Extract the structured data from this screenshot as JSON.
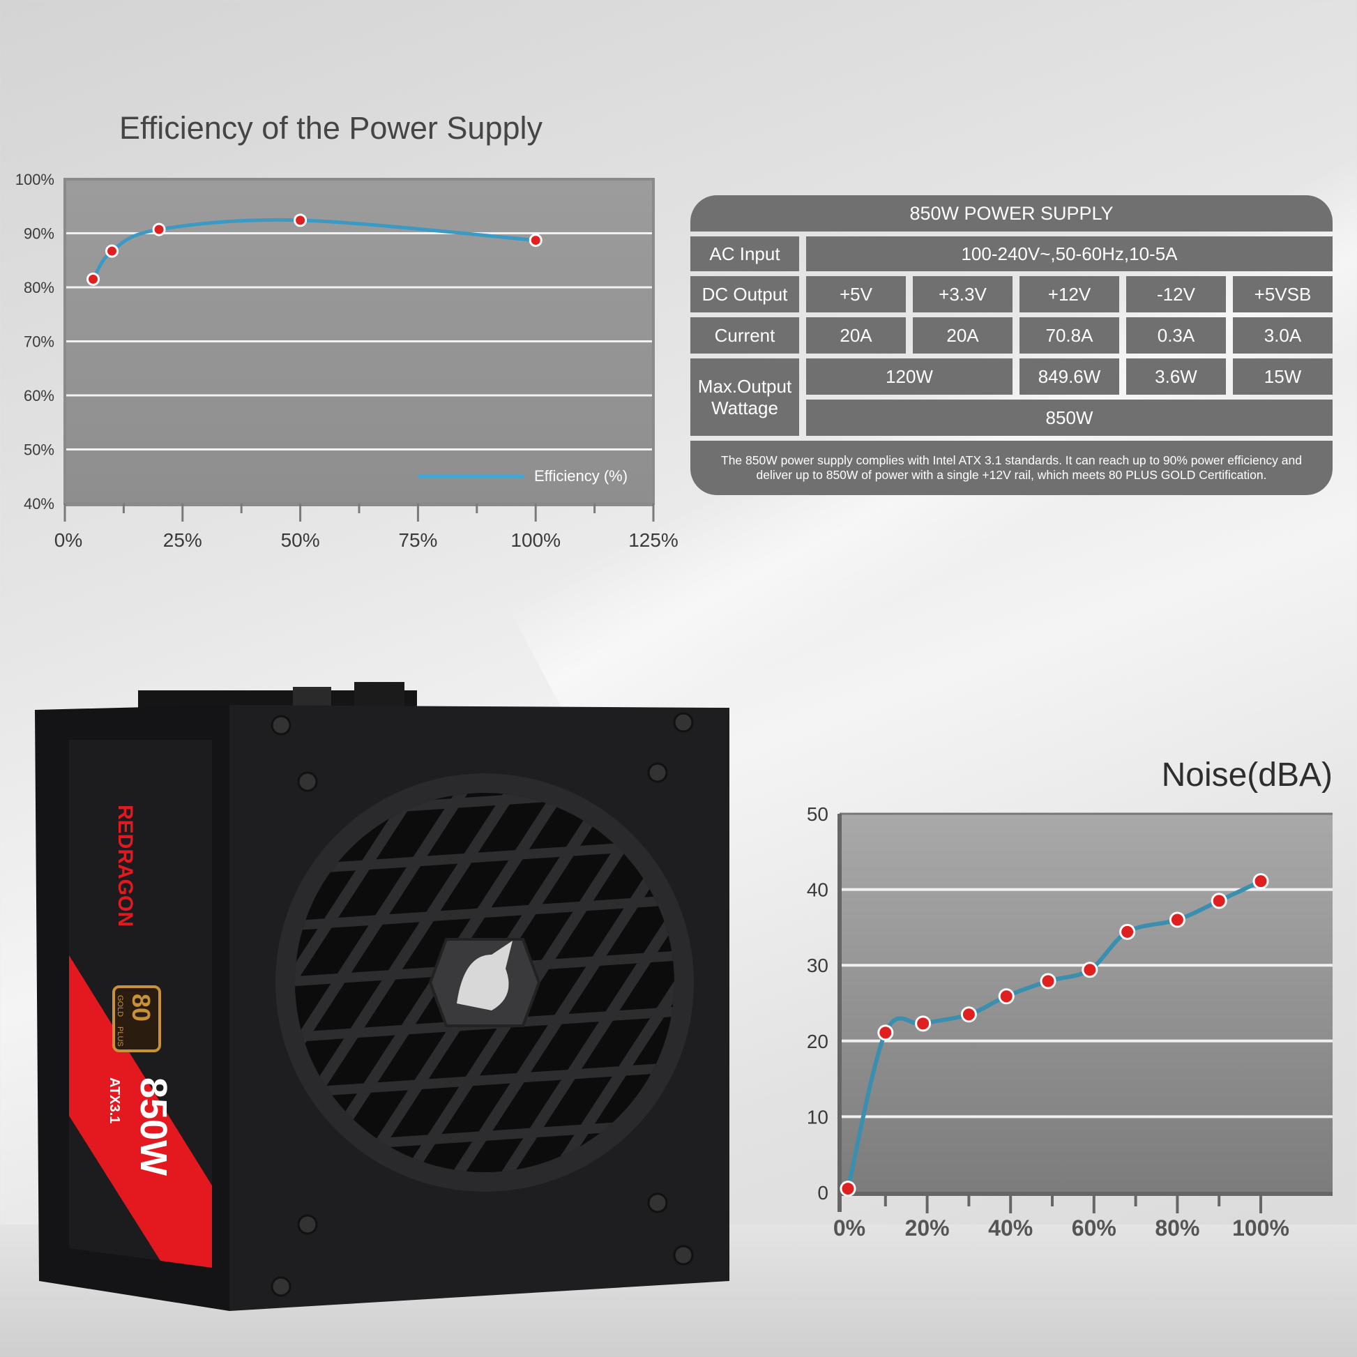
{
  "efficiency_chart": {
    "title": "Efficiency of the Power Supply",
    "chart_data": {
      "type": "line",
      "title": "Efficiency of the Power Supply",
      "xlabel": "",
      "ylabel": "",
      "xlim": [
        0,
        125
      ],
      "ylim": [
        40,
        100
      ],
      "x_ticks": [
        "0%",
        "25%",
        "50%",
        "75%",
        "100%",
        "125%"
      ],
      "y_ticks": [
        "40%",
        "50%",
        "60%",
        "70%",
        "80%",
        "90%",
        "100%"
      ],
      "grid": true,
      "legend": "bottom-right",
      "series": [
        {
          "name": "Efficiency (%)",
          "color": "#3a9ac4",
          "marker_color": "#e02020",
          "x": [
            6,
            10,
            20,
            50,
            100
          ],
          "y": [
            81.5,
            86.7,
            90.7,
            92.4,
            88.7
          ]
        }
      ]
    }
  },
  "spec_table": {
    "header": "850W POWER SUPPLY",
    "rows": {
      "ac_input": {
        "label": "AC Input",
        "value": "100-240V~,50-60Hz,10-5A"
      },
      "dc_output": {
        "label": "DC Output",
        "values": [
          "+5V",
          "+3.3V",
          "+12V",
          "-12V",
          "+5VSB"
        ]
      },
      "current": {
        "label": "Current",
        "values": [
          "20A",
          "20A",
          "70.8A",
          "0.3A",
          "3.0A"
        ]
      },
      "max_output": {
        "label": "Max.Output Wattage",
        "values": [
          "120W",
          "849.6W",
          "3.6W",
          "15W"
        ],
        "total": "850W"
      }
    },
    "note": "The 850W  power supply complies with Intel ATX 3.1  standards. It can reach up to 90% power efficiency and deliver up to 850W of power with a single +12V rail, which meets 80 PLUS GOLD Certification."
  },
  "noise_chart": {
    "title": "Noise(dBA)",
    "chart_data": {
      "type": "line",
      "title": "Noise(dBA)",
      "xlabel": "",
      "ylabel": "",
      "xlim": [
        0,
        100
      ],
      "ylim": [
        0,
        50
      ],
      "x_ticks": [
        "0%",
        "20%",
        "40%",
        "60%",
        "80%",
        "100%"
      ],
      "y_ticks": [
        "0",
        "10",
        "20",
        "30",
        "40",
        "50"
      ],
      "grid": true,
      "series": [
        {
          "color": "#3a8fae",
          "marker_color": "#e02020",
          "x": [
            1,
            10,
            19,
            30,
            39,
            49,
            59,
            68,
            80,
            90,
            100
          ],
          "y": [
            0.5,
            21.1,
            22.3,
            23.5,
            25.9,
            27.9,
            29.4,
            34.4,
            36.0,
            38.5,
            41.1
          ]
        }
      ]
    }
  },
  "product": {
    "brand": "REDRAGON",
    "wattage": "850W",
    "standard": "ATX3.1",
    "badge": {
      "number": "80",
      "plus": "PLUS",
      "tier": "GOLD"
    },
    "colors": {
      "body": "#1e1e20",
      "accent": "#e3191f",
      "gold": "#c8923a"
    }
  }
}
